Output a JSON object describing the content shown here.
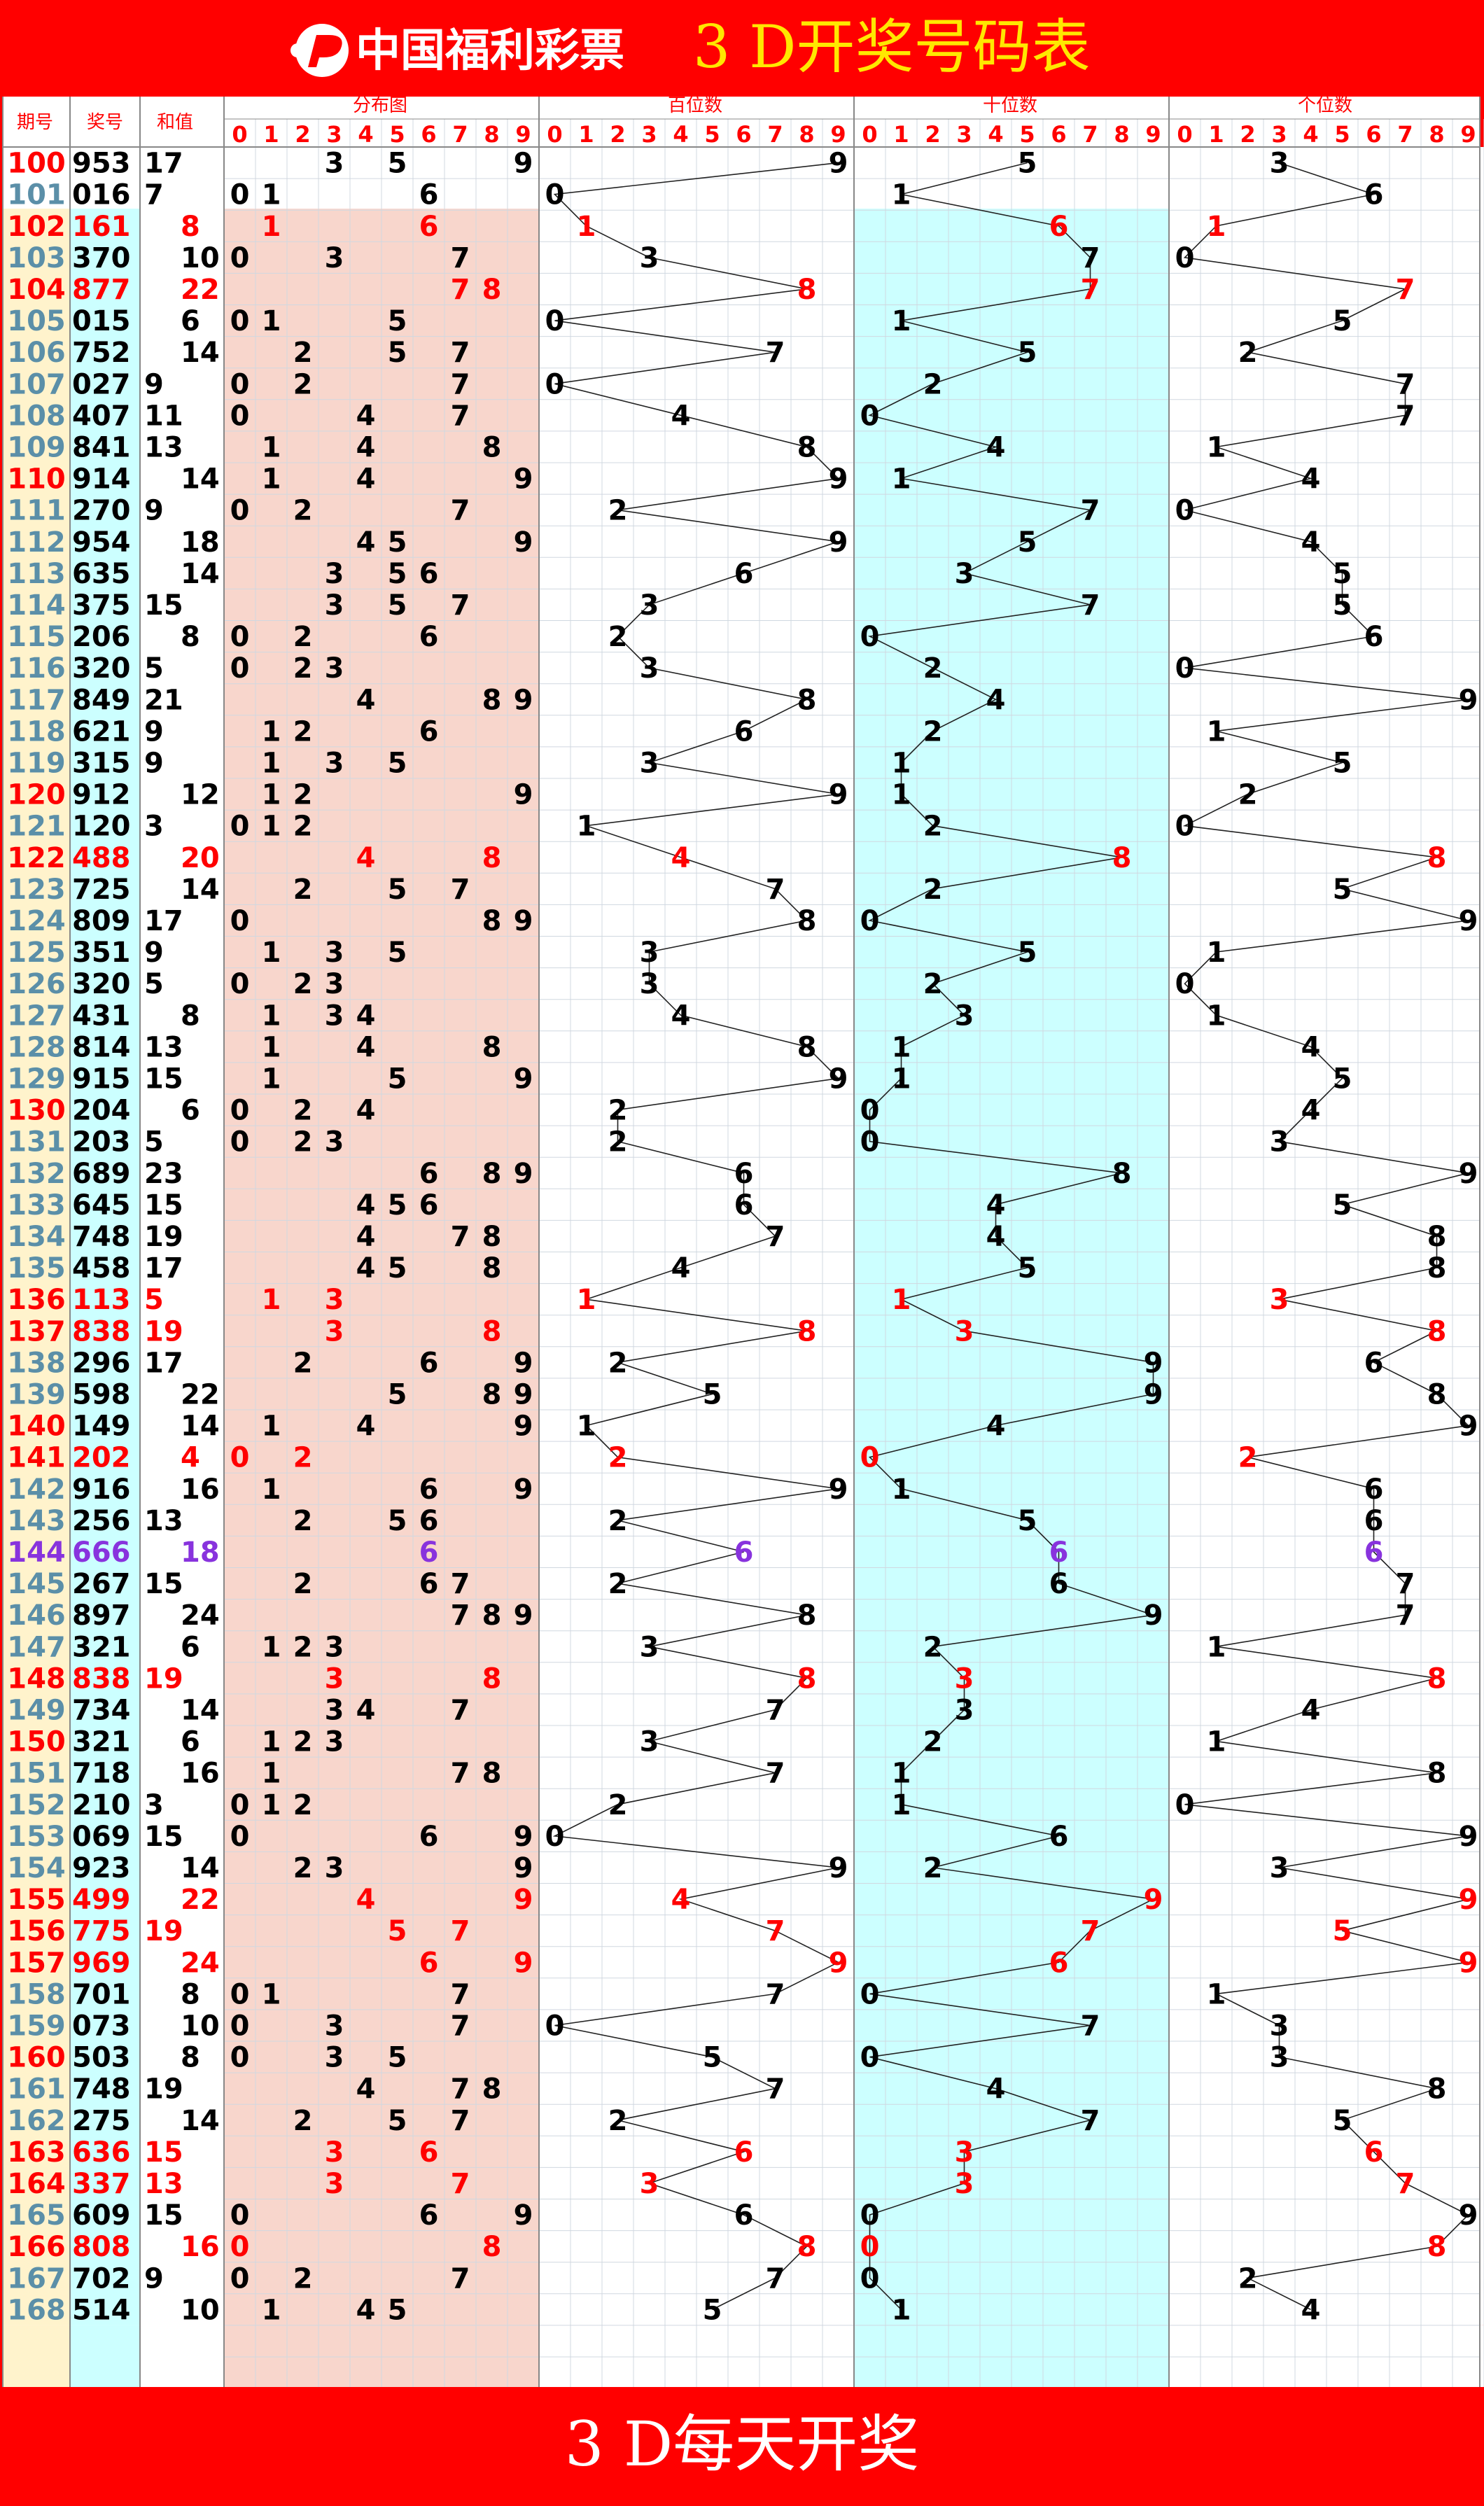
{
  "header": {
    "logo_text": "中国福利彩票",
    "title_text": "3 D开奖号码表"
  },
  "footer": {
    "text": "3 D每天开奖"
  },
  "columns": {
    "period": "期号",
    "number": "奖号",
    "sum": "和值",
    "distribution": "分布图",
    "hundreds": "百位数",
    "tens": "十位数",
    "units": "个位数",
    "digits": [
      "0",
      "1",
      "2",
      "3",
      "4",
      "5",
      "6",
      "7",
      "8",
      "9"
    ]
  },
  "colors": {
    "frame_red": "#ff0000",
    "title_yellow": "#ffe800",
    "black": "#000000",
    "red": "#ff0000",
    "purple": "#8833dd",
    "period_normal": "#5b8fa8",
    "period_col_bg": "#fff3cc",
    "number_col_bg": "#ccffff",
    "dist_bg": "#f8d6cc",
    "tens_bg": "#ccffff",
    "grid": "#d0d8e0"
  },
  "chart_data": {
    "type": "table",
    "periods": [
      "100",
      "101",
      "102",
      "103",
      "104",
      "105",
      "106",
      "107",
      "108",
      "109",
      "110",
      "111",
      "112",
      "113",
      "114",
      "115",
      "116",
      "117",
      "118",
      "119",
      "120",
      "121",
      "122",
      "123",
      "124",
      "125",
      "126",
      "127",
      "128",
      "129",
      "130",
      "131",
      "132",
      "133",
      "134",
      "135",
      "136",
      "137",
      "138",
      "139",
      "140",
      "141",
      "142",
      "143",
      "144",
      "145",
      "146",
      "147",
      "148",
      "149",
      "150",
      "151",
      "152",
      "153",
      "154",
      "155",
      "156",
      "157",
      "158",
      "159",
      "160",
      "161",
      "162",
      "163",
      "164",
      "165",
      "166",
      "167",
      "168"
    ],
    "numbers": [
      "953",
      "016",
      "161",
      "370",
      "877",
      "015",
      "752",
      "027",
      "407",
      "841",
      "914",
      "270",
      "954",
      "635",
      "375",
      "206",
      "320",
      "849",
      "621",
      "315",
      "912",
      "120",
      "488",
      "725",
      "809",
      "351",
      "320",
      "431",
      "814",
      "915",
      "204",
      "203",
      "689",
      "645",
      "748",
      "458",
      "113",
      "838",
      "296",
      "598",
      "149",
      "202",
      "916",
      "256",
      "666",
      "267",
      "897",
      "321",
      "838",
      "734",
      "321",
      "718",
      "210",
      "069",
      "923",
      "499",
      "775",
      "969",
      "701",
      "073",
      "503",
      "748",
      "275",
      "636",
      "337",
      "609",
      "808",
      "702",
      "514"
    ],
    "sums": [
      "17",
      "7",
      "8",
      "10",
      "22",
      "6",
      "14",
      "9",
      "11",
      "13",
      "14",
      "9",
      "18",
      "14",
      "15",
      "8",
      "5",
      "21",
      "9",
      "9",
      "12",
      "3",
      "20",
      "14",
      "17",
      "9",
      "5",
      "8",
      "13",
      "15",
      "6",
      "5",
      "23",
      "15",
      "19",
      "17",
      "5",
      "19",
      "17",
      "22",
      "14",
      "4",
      "16",
      "13",
      "18",
      "15",
      "24",
      "6",
      "19",
      "14",
      "6",
      "16",
      "3",
      "15",
      "14",
      "22",
      "19",
      "24",
      "8",
      "10",
      "8",
      "19",
      "14",
      "15",
      "13",
      "15",
      "16",
      "9",
      "10"
    ]
  }
}
